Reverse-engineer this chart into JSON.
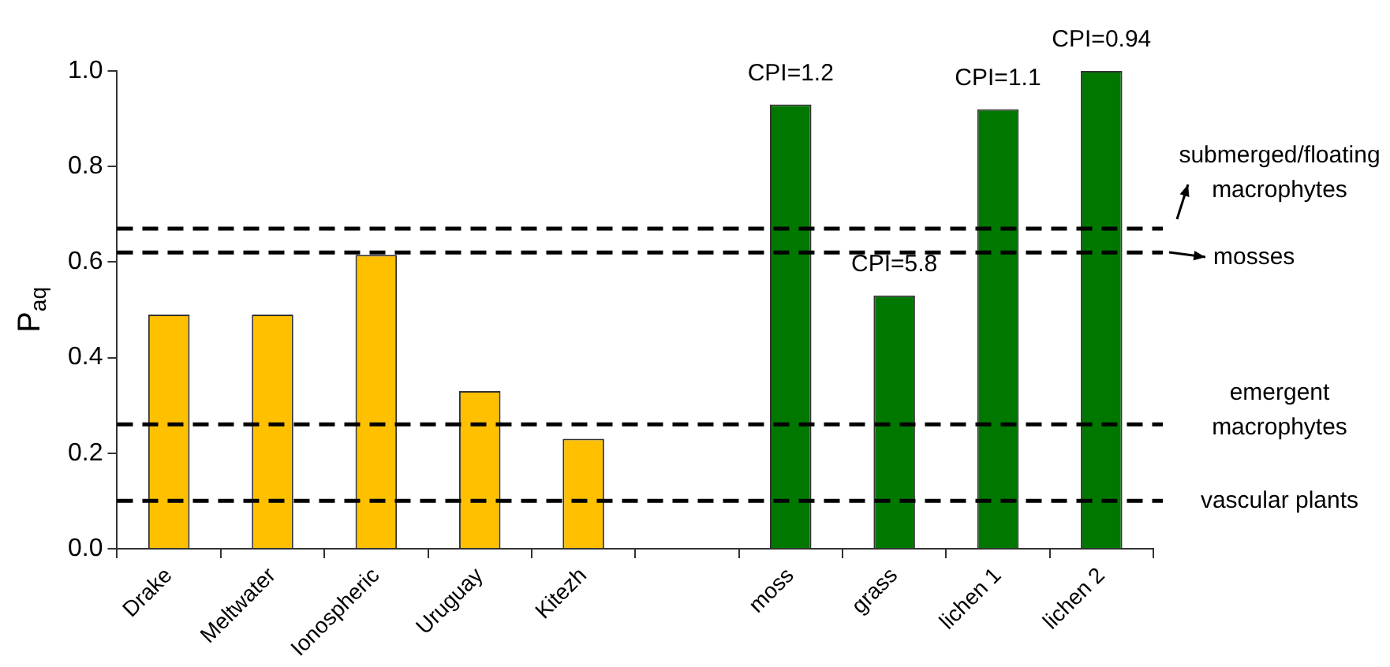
{
  "chart_data": {
    "type": "bar",
    "ylabel": "P$_{aq}$",
    "categories": [
      "Drake",
      "Meltwater",
      "Ionospheric",
      "Uruguay",
      "Kitezh",
      null,
      "moss",
      "grass",
      "lichen 1",
      "lichen 2"
    ],
    "values": [
      0.49,
      0.49,
      0.615,
      0.33,
      0.23,
      null,
      0.93,
      0.53,
      0.92,
      1.0
    ],
    "colors": [
      "#ffc000",
      "#ffc000",
      "#ffc000",
      "#ffc000",
      "#ffc000",
      "#ffc000",
      "#007800",
      "#007800",
      "#007800",
      "#007800"
    ],
    "annotations": [
      {
        "text": "CPI=1.2",
        "x": "moss",
        "y": 0.93
      },
      {
        "text": "CPI=5.8",
        "x": "grass",
        "y": 0.53
      },
      {
        "text": "CPI=1.1",
        "x": "lichen 1",
        "y": 0.92
      },
      {
        "text": "CPI=0.94",
        "x": "lichen 2",
        "y": 1.0
      }
    ],
    "ylim": [
      0,
      1.0
    ],
    "yticks": [
      {
        "value": 0,
        "label": "0.0"
      },
      {
        "value": 0.2,
        "label": "0.2"
      },
      {
        "value": 0.4,
        "label": "0.4"
      },
      {
        "value": 0.6,
        "label": "0.6"
      },
      {
        "value": 0.8,
        "label": "0.8"
      },
      {
        "value": 1.0,
        "label": "1.0"
      }
    ],
    "grid": false,
    "legend": false,
    "ref_lines": [
      {
        "axis": "y",
        "value": 0.67,
        "label": "submerged/floating macrophytes",
        "line_style": "dashed",
        "color": "#000000"
      },
      {
        "axis": "y",
        "value": 0.62,
        "label": "mosses",
        "line_style": "dashed",
        "color": "#000000"
      },
      {
        "axis": "y",
        "value": 0.26,
        "label": "emergent macrophytes",
        "line_style": "dashed",
        "color": "#000000"
      },
      {
        "axis": "y",
        "value": 0.1,
        "label": "vascular plants",
        "line_style": "dashed",
        "color": "#000000"
      }
    ]
  }
}
